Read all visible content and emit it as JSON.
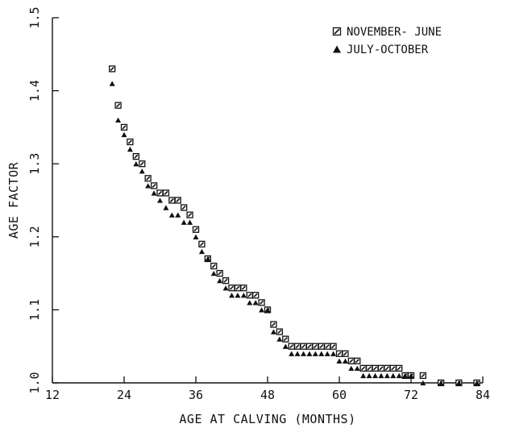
{
  "chart_data": {
    "type": "scatter",
    "title": "",
    "xlabel": "AGE AT CALVING (MONTHS)",
    "ylabel": "AGE FACTOR",
    "xlim": [
      12,
      84
    ],
    "ylim": [
      1.0,
      1.5
    ],
    "xticks": [
      12,
      24,
      36,
      48,
      60,
      72,
      84
    ],
    "yticks": [
      1.0,
      1.1,
      1.2,
      1.3,
      1.4,
      1.5
    ],
    "xtick_labels": [
      "12",
      "24",
      "36",
      "48",
      "60",
      "72",
      "84"
    ],
    "ytick_labels": [
      "1.0",
      "1.1",
      "1.2",
      "1.3",
      "1.4",
      "1.5"
    ],
    "grid": false,
    "legend_position": "top-right",
    "series": [
      {
        "name": "NOVEMBER- JUNE",
        "marker": "square",
        "color": "#111111",
        "x": [
          22,
          23,
          24,
          25,
          26,
          27,
          28,
          29,
          30,
          31,
          32,
          33,
          34,
          35,
          36,
          37,
          38,
          39,
          40,
          41,
          42,
          43,
          44,
          45,
          46,
          47,
          48,
          49,
          50,
          51,
          52,
          53,
          54,
          55,
          56,
          57,
          58,
          59,
          60,
          61,
          62,
          63,
          64,
          65,
          66,
          67,
          68,
          69,
          70,
          71,
          72,
          74,
          77,
          80,
          83
        ],
        "y": [
          1.43,
          1.38,
          1.35,
          1.33,
          1.31,
          1.3,
          1.28,
          1.27,
          1.26,
          1.26,
          1.25,
          1.25,
          1.24,
          1.23,
          1.21,
          1.19,
          1.17,
          1.16,
          1.15,
          1.14,
          1.13,
          1.13,
          1.13,
          1.12,
          1.12,
          1.11,
          1.1,
          1.08,
          1.07,
          1.06,
          1.05,
          1.05,
          1.05,
          1.05,
          1.05,
          1.05,
          1.05,
          1.05,
          1.04,
          1.04,
          1.03,
          1.03,
          1.02,
          1.02,
          1.02,
          1.02,
          1.02,
          1.02,
          1.02,
          1.01,
          1.01,
          1.01,
          1.0,
          1.0,
          1.0
        ]
      },
      {
        "name": "JULY-OCTOBER",
        "marker": "triangle",
        "color": "#111111",
        "x": [
          22,
          23,
          24,
          25,
          26,
          27,
          28,
          29,
          30,
          31,
          32,
          33,
          34,
          35,
          36,
          37,
          38,
          39,
          40,
          41,
          42,
          43,
          44,
          45,
          46,
          47,
          48,
          49,
          50,
          51,
          52,
          53,
          54,
          55,
          56,
          57,
          58,
          59,
          60,
          61,
          62,
          63,
          64,
          65,
          66,
          67,
          68,
          69,
          70,
          71,
          72,
          74,
          77,
          80,
          83
        ],
        "y": [
          1.41,
          1.36,
          1.34,
          1.32,
          1.3,
          1.29,
          1.27,
          1.26,
          1.25,
          1.24,
          1.23,
          1.23,
          1.22,
          1.22,
          1.2,
          1.18,
          1.17,
          1.15,
          1.14,
          1.13,
          1.12,
          1.12,
          1.12,
          1.11,
          1.11,
          1.1,
          1.1,
          1.07,
          1.06,
          1.05,
          1.04,
          1.04,
          1.04,
          1.04,
          1.04,
          1.04,
          1.04,
          1.04,
          1.03,
          1.03,
          1.02,
          1.02,
          1.01,
          1.01,
          1.01,
          1.01,
          1.01,
          1.01,
          1.01,
          1.01,
          1.01,
          1.0,
          1.0,
          1.0,
          1.0
        ]
      }
    ]
  }
}
